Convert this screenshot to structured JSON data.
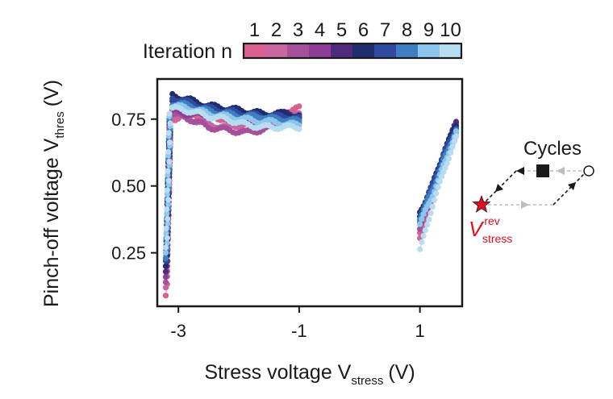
{
  "chart_data": {
    "type": "scatter",
    "xlabel": {
      "main": "Stress voltage V",
      "sub": "stress",
      "unit": "(V)"
    },
    "ylabel": {
      "main": "Pinch-off voltage V",
      "sub": "thres",
      "unit": "(V)"
    },
    "xticks": [
      -3,
      -1,
      1
    ],
    "yticks": [
      0.25,
      0.5,
      0.75
    ],
    "xlim": [
      -3.35,
      1.7
    ],
    "ylim": [
      0.05,
      0.9
    ],
    "colorbar": {
      "label": "Iteration n",
      "ticks": [
        "1",
        "2",
        "3",
        "4",
        "5",
        "6",
        "7",
        "8",
        "9",
        "10"
      ],
      "colors": [
        "#d9608f",
        "#c7679f",
        "#a6509b",
        "#8c3d95",
        "#4f2a7f",
        "#1f2d6e",
        "#2f4aa0",
        "#3f7fc0",
        "#8cc6ec",
        "#b8dcf0"
      ]
    },
    "series": [
      {
        "iteration": 1,
        "min_vthres": 0.09,
        "knee": 0.69,
        "plateau": [
          0.75,
          0.77,
          0.76,
          0.75,
          0.74,
          0.75,
          0.76,
          0.78,
          0.79
        ],
        "pos": [
          0.33,
          0.46,
          0.6,
          0.69
        ]
      },
      {
        "iteration": 2,
        "min_vthres": 0.12,
        "knee": 0.7,
        "plateau": [
          0.76,
          0.75,
          0.73,
          0.72,
          0.73,
          0.74,
          0.75,
          0.76,
          0.77
        ],
        "pos": [
          0.31,
          0.45,
          0.59,
          0.7
        ]
      },
      {
        "iteration": 3,
        "min_vthres": 0.14,
        "knee": 0.71,
        "plateau": [
          0.77,
          0.75,
          0.72,
          0.71,
          0.7,
          0.71,
          0.72,
          0.73,
          0.74
        ],
        "pos": [
          0.34,
          0.46,
          0.59,
          0.71
        ]
      },
      {
        "iteration": 4,
        "min_vthres": 0.16,
        "knee": 0.72,
        "plateau": [
          0.78,
          0.77,
          0.76,
          0.75,
          0.74,
          0.74,
          0.75,
          0.76,
          0.76
        ],
        "pos": [
          0.36,
          0.48,
          0.61,
          0.73
        ]
      },
      {
        "iteration": 5,
        "min_vthres": 0.18,
        "knee": 0.73,
        "plateau": [
          0.81,
          0.79,
          0.78,
          0.77,
          0.76,
          0.76,
          0.77,
          0.77,
          0.76
        ],
        "pos": [
          0.38,
          0.49,
          0.62,
          0.74
        ]
      },
      {
        "iteration": 6,
        "min_vthres": 0.2,
        "knee": 0.74,
        "plateau": [
          0.84,
          0.82,
          0.8,
          0.79,
          0.78,
          0.77,
          0.77,
          0.77,
          0.76
        ],
        "pos": [
          0.4,
          0.5,
          0.63,
          0.73
        ]
      },
      {
        "iteration": 7,
        "min_vthres": 0.22,
        "knee": 0.74,
        "plateau": [
          0.83,
          0.81,
          0.79,
          0.78,
          0.77,
          0.76,
          0.76,
          0.76,
          0.75
        ],
        "pos": [
          0.39,
          0.5,
          0.62,
          0.72
        ]
      },
      {
        "iteration": 8,
        "min_vthres": 0.23,
        "knee": 0.75,
        "plateau": [
          0.81,
          0.8,
          0.78,
          0.77,
          0.76,
          0.76,
          0.75,
          0.75,
          0.74
        ],
        "pos": [
          0.38,
          0.48,
          0.6,
          0.71
        ]
      },
      {
        "iteration": 9,
        "min_vthres": 0.25,
        "knee": 0.76,
        "plateau": [
          0.8,
          0.79,
          0.77,
          0.76,
          0.75,
          0.74,
          0.74,
          0.73,
          0.73
        ],
        "pos": [
          0.36,
          0.46,
          0.58,
          0.7
        ]
      },
      {
        "iteration": 10,
        "min_vthres": 0.27,
        "knee": 0.77,
        "plateau": [
          0.79,
          0.78,
          0.76,
          0.75,
          0.73,
          0.72,
          0.72,
          0.72,
          0.72
        ],
        "pos": [
          0.26,
          0.42,
          0.56,
          0.68
        ]
      }
    ],
    "stress_ranges": {
      "neg_start": -3.2,
      "plateau": [
        -3.1,
        -2.8,
        -2.5,
        -2.2,
        -1.9,
        -1.6,
        -1.4,
        -1.2,
        -1.0
      ],
      "pos": [
        1.0,
        1.2,
        1.4,
        1.6
      ]
    }
  },
  "inset": {
    "title": "Cycles",
    "label_main": "V",
    "label_sup": "rev",
    "label_sub": "stress",
    "accent": "#e0101e"
  }
}
